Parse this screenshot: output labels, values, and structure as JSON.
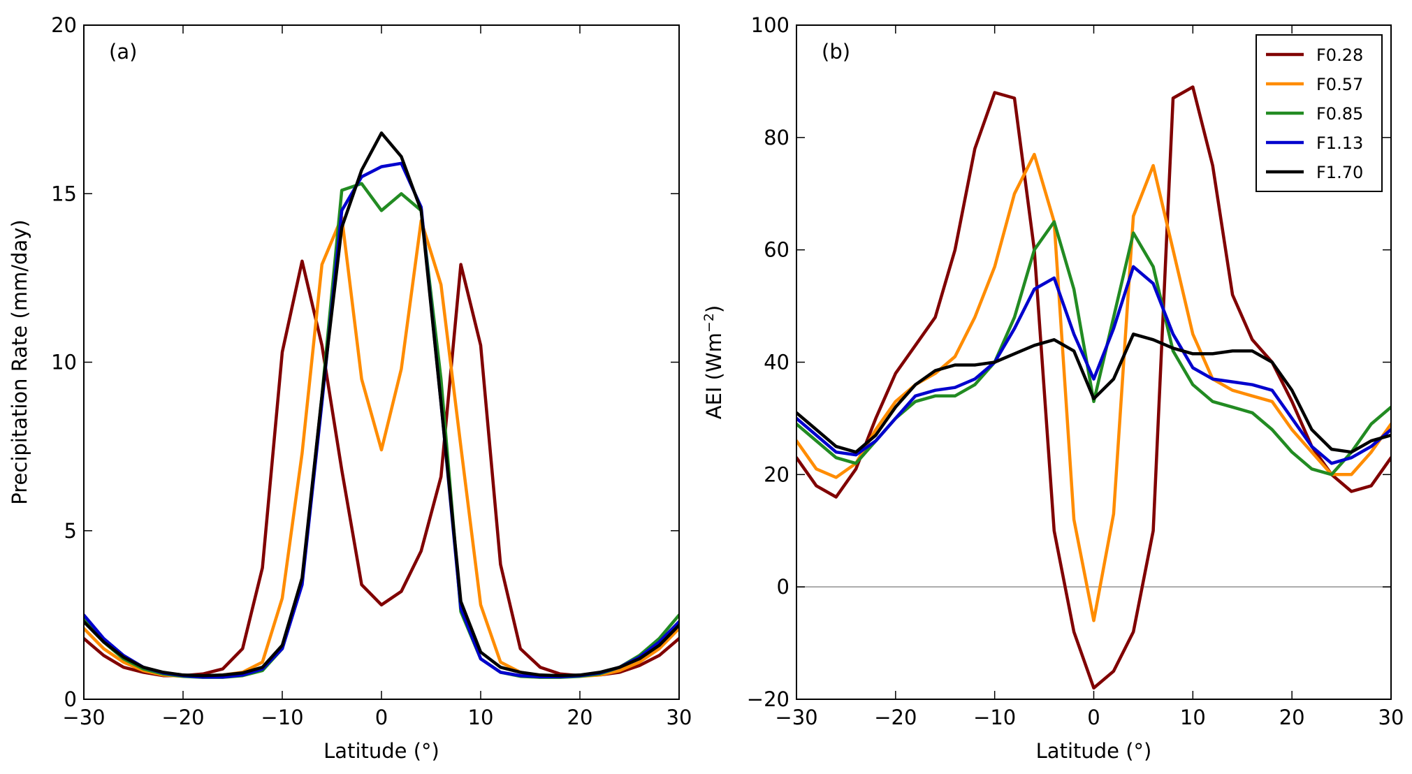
{
  "chart_data": [
    {
      "type": "line",
      "panel_label": "(a)",
      "xlabel": "Latitude (°)",
      "ylabel": "Precipitation Rate (mm/day)",
      "xlim": [
        -30,
        30
      ],
      "ylim": [
        0,
        20
      ],
      "xticks": [
        -30,
        -20,
        -10,
        0,
        10,
        20,
        30
      ],
      "xtick_labels": [
        "−30",
        "−20",
        "−10",
        "0",
        "10",
        "20",
        "30"
      ],
      "yticks": [
        0,
        5,
        10,
        15,
        20
      ],
      "ytick_labels": [
        "0",
        "5",
        "10",
        "15",
        "20"
      ],
      "x": [
        -30,
        -28,
        -26,
        -24,
        -22,
        -20,
        -18,
        -16,
        -14,
        -12,
        -10,
        -8,
        -6,
        -4,
        -2,
        0,
        2,
        4,
        6,
        8,
        10,
        12,
        14,
        16,
        18,
        20,
        22,
        24,
        26,
        28,
        30
      ],
      "series": [
        {
          "name": "F0.28",
          "color": "#800000",
          "values": [
            1.8,
            1.3,
            0.95,
            0.8,
            0.7,
            0.7,
            0.75,
            0.9,
            1.5,
            3.9,
            10.3,
            13.0,
            10.5,
            6.8,
            3.4,
            2.8,
            3.2,
            4.4,
            6.6,
            12.9,
            10.5,
            4.0,
            1.5,
            0.95,
            0.75,
            0.7,
            0.72,
            0.8,
            1.0,
            1.3,
            1.8
          ]
        },
        {
          "name": "F0.57",
          "color": "#FF8C00",
          "values": [
            2.1,
            1.5,
            1.1,
            0.85,
            0.72,
            0.68,
            0.68,
            0.72,
            0.8,
            1.1,
            3.0,
            7.3,
            12.9,
            14.3,
            9.5,
            7.4,
            9.8,
            14.2,
            12.3,
            7.5,
            2.8,
            1.1,
            0.8,
            0.7,
            0.68,
            0.68,
            0.72,
            0.85,
            1.1,
            1.5,
            2.1
          ]
        },
        {
          "name": "F0.85",
          "color": "#228B22",
          "values": [
            2.4,
            1.7,
            1.2,
            0.9,
            0.75,
            0.68,
            0.65,
            0.65,
            0.7,
            0.85,
            1.5,
            3.5,
            9.0,
            15.1,
            15.3,
            14.5,
            15.0,
            14.5,
            9.5,
            2.6,
            1.2,
            0.8,
            0.68,
            0.65,
            0.65,
            0.68,
            0.75,
            0.95,
            1.3,
            1.8,
            2.5
          ]
        },
        {
          "name": "F1.13",
          "color": "#0000CD",
          "values": [
            2.5,
            1.8,
            1.3,
            0.95,
            0.78,
            0.7,
            0.66,
            0.66,
            0.72,
            0.9,
            1.5,
            3.4,
            8.8,
            14.5,
            15.5,
            15.8,
            15.9,
            14.6,
            8.8,
            2.7,
            1.2,
            0.8,
            0.7,
            0.67,
            0.67,
            0.7,
            0.78,
            0.95,
            1.25,
            1.7,
            2.3
          ]
        },
        {
          "name": "F1.70",
          "color": "#000000",
          "values": [
            2.3,
            1.7,
            1.25,
            0.95,
            0.8,
            0.72,
            0.7,
            0.72,
            0.78,
            0.95,
            1.6,
            3.6,
            9.0,
            14.0,
            15.7,
            16.8,
            16.1,
            14.5,
            8.8,
            2.9,
            1.4,
            0.95,
            0.8,
            0.72,
            0.7,
            0.72,
            0.8,
            0.95,
            1.2,
            1.6,
            2.2
          ]
        }
      ]
    },
    {
      "type": "line",
      "panel_label": "(b)",
      "xlabel": "Latitude (°)",
      "ylabel_main": "AEI (Wm",
      "ylabel_sup": "−2",
      "ylabel_end": ")",
      "xlim": [
        -30,
        30
      ],
      "ylim": [
        -20,
        100
      ],
      "xticks": [
        -30,
        -20,
        -10,
        0,
        10,
        20,
        30
      ],
      "xtick_labels": [
        "−30",
        "−20",
        "−10",
        "0",
        "10",
        "20",
        "30"
      ],
      "yticks": [
        -20,
        0,
        20,
        40,
        60,
        80,
        100
      ],
      "ytick_labels": [
        "−20",
        "0",
        "20",
        "40",
        "60",
        "80",
        "100"
      ],
      "zero_line": 0,
      "legend_position": "top-right",
      "x": [
        -30,
        -28,
        -26,
        -24,
        -22,
        -20,
        -18,
        -16,
        -14,
        -12,
        -10,
        -8,
        -6,
        -4,
        -2,
        0,
        2,
        4,
        6,
        8,
        10,
        12,
        14,
        16,
        18,
        20,
        22,
        24,
        26,
        28,
        30
      ],
      "series": [
        {
          "name": "F0.28",
          "color": "#800000",
          "values": [
            23,
            18,
            16,
            21,
            30,
            38,
            43,
            48,
            60,
            78,
            88,
            87,
            60,
            10,
            -8,
            -18,
            -15,
            -8,
            10,
            87,
            89,
            75,
            52,
            44,
            40,
            33,
            25,
            20,
            17,
            18,
            23
          ]
        },
        {
          "name": "F0.57",
          "color": "#FF8C00",
          "values": [
            26,
            21,
            19.5,
            22,
            28,
            33,
            36,
            38,
            41,
            48,
            57,
            70,
            77,
            65,
            12,
            -6,
            13,
            66,
            75,
            60,
            45,
            37,
            35,
            34,
            33,
            28,
            24,
            20,
            20,
            24,
            29
          ]
        },
        {
          "name": "F0.85",
          "color": "#228B22",
          "values": [
            29,
            26,
            23,
            22,
            26,
            30,
            33,
            34,
            34,
            36,
            40,
            48,
            60,
            65,
            53,
            33,
            48,
            63,
            57,
            42,
            36,
            33,
            32,
            31,
            28,
            24,
            21,
            20,
            24,
            29,
            32
          ]
        },
        {
          "name": "F1.13",
          "color": "#0000CD",
          "values": [
            30,
            27,
            24,
            23.5,
            26,
            30,
            34,
            35,
            35.5,
            37,
            40,
            46,
            53,
            55,
            45,
            37,
            46,
            57,
            54,
            45,
            39,
            37,
            36.5,
            36,
            35,
            30,
            25,
            22,
            23,
            25,
            28
          ]
        },
        {
          "name": "F1.70",
          "color": "#000000",
          "values": [
            31,
            28,
            25,
            24,
            27,
            32,
            36,
            38.5,
            39.5,
            39.5,
            40,
            41.5,
            43,
            44,
            42,
            33.5,
            37,
            45,
            44,
            42.5,
            41.5,
            41.5,
            42,
            42,
            40,
            35,
            28,
            24.5,
            24,
            26,
            27
          ]
        }
      ]
    }
  ]
}
